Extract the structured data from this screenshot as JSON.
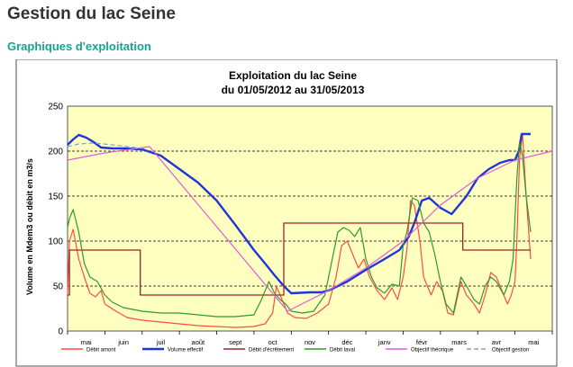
{
  "page": {
    "title": "Gestion du lac Seine",
    "subtitle": "Graphiques d'exploitation"
  },
  "chart_data": {
    "type": "line",
    "title": "Exploitation du lac Seine",
    "subtitle": "du 01/05/2012  au 31/05/2013",
    "ylabel": "Volume en Mdem3 ou débit en m3/s",
    "xlabel": "",
    "ylim": [
      0,
      250
    ],
    "yticks": [
      0,
      50,
      100,
      150,
      200,
      250
    ],
    "grid": "horizontal",
    "x_tick_labels": [
      "mai",
      "juin",
      "juil",
      "août",
      "sept",
      "oct",
      "nov",
      "déc",
      "janv",
      "févr",
      "mars",
      "avr",
      "mai"
    ],
    "x_month_index_range": [
      0,
      13
    ],
    "legend_position": "bottom",
    "series": [
      {
        "name": "Débit amont",
        "color": "#ff4a4a",
        "width": 1.2,
        "x": [
          0.0,
          0.05,
          0.15,
          0.3,
          0.45,
          0.6,
          0.75,
          0.9,
          1.0,
          1.3,
          1.6,
          2.0,
          2.5,
          3.0,
          3.5,
          4.0,
          4.5,
          5.0,
          5.3,
          5.5,
          5.6,
          5.75,
          5.9,
          6.1,
          6.4,
          6.7,
          7.0,
          7.2,
          7.35,
          7.5,
          7.65,
          7.8,
          7.95,
          8.1,
          8.3,
          8.5,
          8.7,
          8.85,
          9.0,
          9.1,
          9.2,
          9.3,
          9.45,
          9.55,
          9.75,
          9.9,
          10.05,
          10.2,
          10.35,
          10.55,
          10.7,
          10.9,
          11.05,
          11.2,
          11.35,
          11.5,
          11.65,
          11.8,
          11.9,
          12.0,
          12.05,
          12.12,
          12.2,
          12.3,
          12.42
        ],
        "y": [
          40,
          100,
          113,
          80,
          60,
          42,
          38,
          45,
          30,
          22,
          15,
          12,
          10,
          8,
          6,
          5,
          4,
          5,
          8,
          20,
          50,
          35,
          20,
          15,
          14,
          20,
          30,
          60,
          95,
          100,
          85,
          70,
          80,
          60,
          45,
          35,
          48,
          35,
          60,
          90,
          145,
          140,
          100,
          60,
          40,
          55,
          45,
          20,
          18,
          55,
          40,
          30,
          20,
          40,
          65,
          60,
          45,
          30,
          40,
          55,
          100,
          190,
          220,
          150,
          80
        ]
      },
      {
        "name": "Volume effectif",
        "color": "#1f35d8",
        "width": 2.4,
        "x": [
          0.0,
          0.15,
          0.3,
          0.5,
          0.7,
          0.9,
          1.2,
          1.5,
          2.0,
          2.5,
          3.0,
          3.5,
          4.0,
          4.5,
          5.0,
          5.3,
          5.55,
          5.8,
          6.0,
          6.5,
          6.8,
          7.0,
          7.5,
          8.0,
          8.5,
          8.9,
          9.15,
          9.3,
          9.5,
          9.7,
          10.0,
          10.3,
          10.7,
          11.0,
          11.3,
          11.6,
          11.85,
          12.0,
          12.1,
          12.18,
          12.3,
          12.42
        ],
        "y": [
          207,
          213,
          218,
          215,
          210,
          204,
          203,
          203,
          202,
          195,
          180,
          165,
          145,
          118,
          90,
          75,
          62,
          50,
          42,
          43,
          43,
          45,
          55,
          68,
          80,
          90,
          105,
          120,
          145,
          148,
          137,
          130,
          150,
          170,
          180,
          187,
          190,
          190,
          200,
          219,
          219,
          219
        ]
      },
      {
        "name": "Débit d'écrêtement",
        "color": "#9c2525",
        "width": 1.3,
        "x": [
          0.0,
          0.05,
          0.05,
          1.95,
          1.95,
          5.8,
          5.8,
          10.6,
          10.6,
          12.42
        ],
        "y": [
          40,
          40,
          90,
          90,
          40,
          40,
          120,
          120,
          90,
          90
        ]
      },
      {
        "name": "Débit laval",
        "color": "#2e9a2e",
        "width": 1.2,
        "x": [
          0.0,
          0.05,
          0.15,
          0.3,
          0.45,
          0.6,
          0.8,
          1.0,
          1.2,
          1.5,
          2.0,
          2.5,
          3.0,
          3.5,
          4.0,
          4.5,
          5.0,
          5.2,
          5.4,
          5.55,
          5.7,
          5.85,
          6.0,
          6.3,
          6.6,
          6.9,
          7.1,
          7.25,
          7.4,
          7.55,
          7.7,
          7.85,
          8.0,
          8.15,
          8.3,
          8.5,
          8.7,
          8.9,
          9.0,
          9.1,
          9.25,
          9.4,
          9.55,
          9.7,
          9.85,
          10.0,
          10.15,
          10.35,
          10.55,
          10.7,
          10.9,
          11.05,
          11.2,
          11.35,
          11.5,
          11.7,
          11.85,
          11.95,
          12.05,
          12.12,
          12.2,
          12.3,
          12.42
        ],
        "y": [
          115,
          125,
          135,
          110,
          75,
          60,
          55,
          40,
          32,
          26,
          22,
          20,
          20,
          18,
          16,
          16,
          18,
          35,
          55,
          42,
          35,
          30,
          22,
          20,
          22,
          40,
          80,
          110,
          115,
          112,
          105,
          115,
          80,
          60,
          48,
          42,
          52,
          50,
          95,
          110,
          148,
          145,
          120,
          110,
          85,
          55,
          30,
          20,
          60,
          50,
          35,
          30,
          50,
          60,
          55,
          40,
          55,
          80,
          170,
          210,
          195,
          150,
          110
        ]
      },
      {
        "name": "Objectif théorique",
        "color": "#e05ae0",
        "width": 1.2,
        "x": [
          0.0,
          1.0,
          2.2,
          5.9,
          7.0,
          8.0,
          9.0,
          10.0,
          11.0,
          12.0,
          13.0
        ],
        "y": [
          190,
          198,
          205,
          22,
          45,
          70,
          100,
          140,
          170,
          190,
          200
        ]
      },
      {
        "name": "Objectif gestion",
        "color": "#7fa3c8",
        "width": 1.2,
        "dash": "5,3",
        "x": [
          0.0,
          0.3,
          0.7,
          1.2,
          2.0
        ],
        "y": [
          205,
          208,
          209,
          207,
          203
        ]
      }
    ]
  }
}
